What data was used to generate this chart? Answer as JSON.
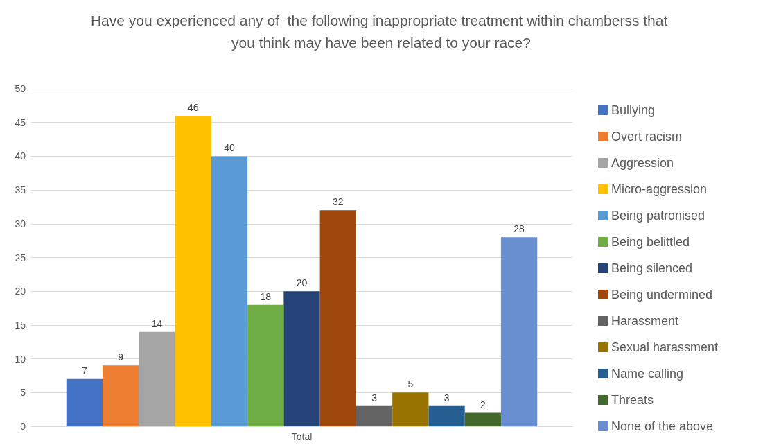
{
  "chart_data": {
    "type": "bar",
    "title": "Have you experienced any of  the following inappropriate treatment within chamberss that you think may have been related to your race?",
    "categories": [
      "Total"
    ],
    "series": [
      {
        "name": "Bullying",
        "color": "#4472c4",
        "values": [
          7
        ]
      },
      {
        "name": "Overt racism",
        "color": "#ed7d31",
        "values": [
          9
        ]
      },
      {
        "name": "Aggression",
        "color": "#a5a5a5",
        "values": [
          14
        ]
      },
      {
        "name": "Micro-aggression",
        "color": "#ffc000",
        "values": [
          46
        ]
      },
      {
        "name": "Being patronised",
        "color": "#5b9bd5",
        "values": [
          40
        ]
      },
      {
        "name": "Being belittled",
        "color": "#70ad47",
        "values": [
          18
        ]
      },
      {
        "name": "Being silenced",
        "color": "#264478",
        "values": [
          20
        ]
      },
      {
        "name": "Being undermined",
        "color": "#9e480e",
        "values": [
          32
        ]
      },
      {
        "name": "Harassment",
        "color": "#636363",
        "values": [
          3
        ]
      },
      {
        "name": "Sexual harassment",
        "color": "#997300",
        "values": [
          5
        ]
      },
      {
        "name": "Name calling",
        "color": "#255e91",
        "values": [
          3
        ]
      },
      {
        "name": "Threats",
        "color": "#43682b",
        "values": [
          2
        ]
      },
      {
        "name": "None of the above",
        "color": "#698ed0",
        "values": [
          28
        ]
      }
    ],
    "ylim": [
      0,
      50
    ],
    "yticks": [
      0,
      5,
      10,
      15,
      20,
      25,
      30,
      35,
      40,
      45,
      50
    ],
    "grid": "y",
    "legend": "right",
    "data_labels": true
  }
}
